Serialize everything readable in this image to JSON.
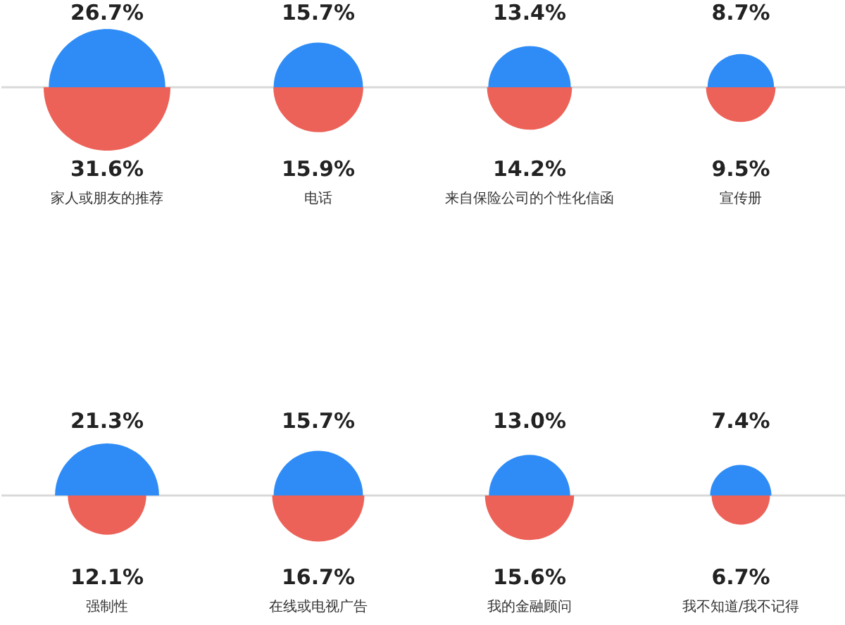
{
  "chart_data": {
    "type": "other",
    "categories": [
      "家人或朋友的推荐",
      "电话",
      "来自保险公司的个性化信函",
      "宣传册",
      "强制性",
      "在线或电视广告",
      "我的金融顾问",
      "我不知道/我不记得"
    ],
    "series": [
      {
        "color": "#2f8cf6",
        "values": [
          26.7,
          15.7,
          13.4,
          8.7,
          21.3,
          15.7,
          13.0,
          7.4
        ],
        "value_labels": [
          "26.7%",
          "15.7%",
          "13.4%",
          "8.7%",
          "21.3%",
          "15.7%",
          "13.0%",
          "7.4%"
        ]
      },
      {
        "color": "#ec6258",
        "values": [
          31.6,
          15.9,
          14.2,
          9.5,
          12.1,
          16.7,
          15.6,
          6.7
        ],
        "value_labels": [
          "31.6%",
          "15.9%",
          "14.2%",
          "9.5%",
          "12.1%",
          "16.7%",
          "15.6%",
          "6.7%"
        ]
      }
    ]
  }
}
